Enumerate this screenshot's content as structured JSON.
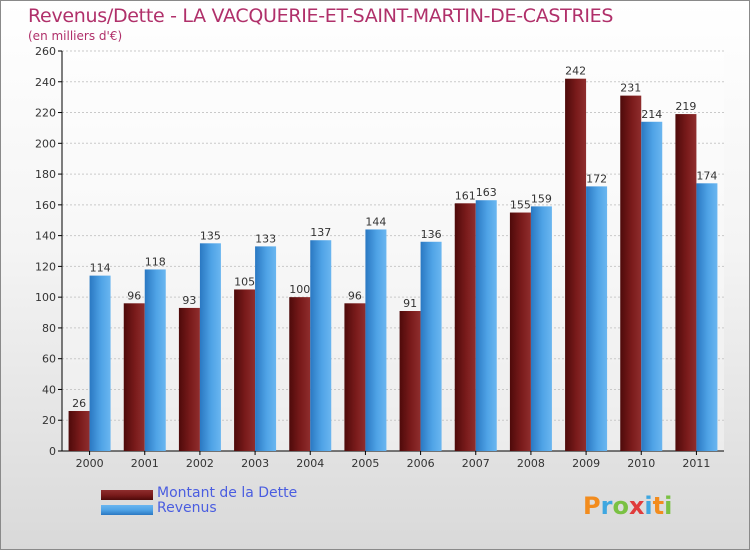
{
  "title": "Revenus/Dette - LA VACQUERIE-ET-SAINT-MARTIN-DE-CASTRIES",
  "subtitle": "(en milliers d'€)",
  "logo": {
    "text": "Proxiti",
    "colors": [
      "#f28c1e",
      "#3fa7e0",
      "#7ac143",
      "#e03c3c",
      "#3fa7e0",
      "#f28c1e",
      "#7ac143"
    ]
  },
  "colors": {
    "dette": "#7a1b1b",
    "revenus": "#4fa3e6",
    "axis": "#000000",
    "grid": "#c9c9c9"
  },
  "chart_data": {
    "type": "bar",
    "categories": [
      "2000",
      "2001",
      "2002",
      "2003",
      "2004",
      "2005",
      "2006",
      "2007",
      "2008",
      "2009",
      "2010",
      "2011"
    ],
    "series": [
      {
        "name": "Montant de la Dette",
        "values": [
          26,
          96,
          93,
          105,
          100,
          96,
          91,
          161,
          155,
          242,
          231,
          219
        ]
      },
      {
        "name": "Revenus",
        "values": [
          114,
          118,
          135,
          133,
          137,
          144,
          136,
          163,
          159,
          172,
          214,
          174
        ]
      }
    ],
    "ylim": [
      0,
      260
    ],
    "yticks": [
      0,
      20,
      40,
      60,
      80,
      100,
      120,
      140,
      160,
      180,
      200,
      220,
      240,
      260
    ],
    "grid": true,
    "legend": "bottom-left"
  }
}
